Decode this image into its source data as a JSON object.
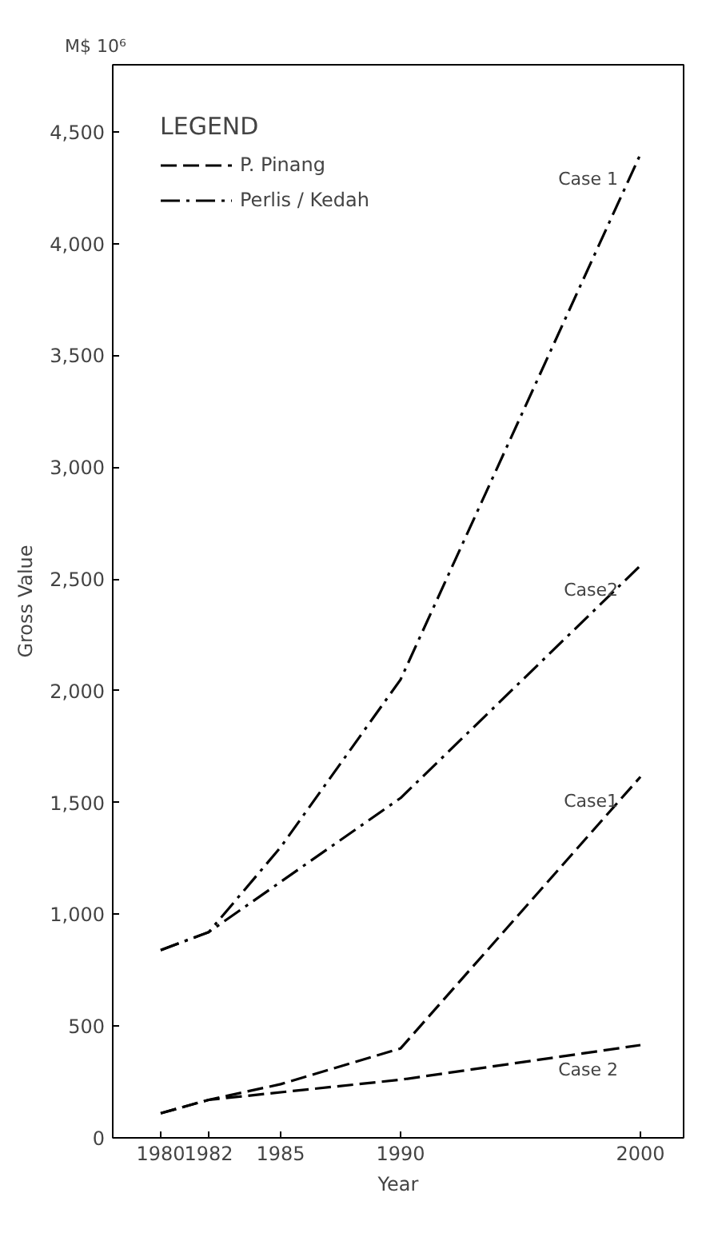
{
  "chart_data": {
    "type": "line",
    "xlabel": "Year",
    "ylabel": "Gross Value",
    "legend_title": "LEGEND",
    "legend": "top left",
    "grid": false,
    "xlim": [
      1978,
      2001.8
    ],
    "ylim": [
      0,
      4800
    ],
    "xticks": [
      1980,
      1982,
      1985,
      1990,
      2000
    ],
    "yticks": [
      0,
      500,
      {
        "value": 1000,
        "label": "1,000"
      },
      {
        "value": 1500,
        "label": "1,500"
      },
      {
        "value": 2000,
        "label": "2,000"
      },
      {
        "value": 2500,
        "label": "2,500"
      },
      {
        "value": 3000,
        "label": "3,000"
      },
      {
        "value": 3500,
        "label": "3,500"
      },
      {
        "value": 4000,
        "label": "4,000"
      },
      {
        "value": 4500,
        "label": "4,500"
      }
    ],
    "series": [
      {
        "name": "P. Pinang",
        "color": "#000000",
        "line_style": "dashed",
        "x": [
          1980,
          1982,
          1985,
          1990,
          2000
        ],
        "values": [
          110,
          170,
          240,
          400,
          1615
        ]
      },
      {
        "color": "#000000",
        "line_style": "dashed",
        "x": [
          1980,
          1982,
          1990,
          2000
        ],
        "values": [
          110,
          170,
          260,
          415
        ]
      },
      {
        "name": "Perlis / Kedah",
        "color": "#000000",
        "line_style": "dashdot",
        "x": [
          1980,
          1982,
          1985,
          1990,
          2000
        ],
        "values": [
          840,
          920,
          1300,
          2050,
          4400
        ]
      },
      {
        "color": "#000000",
        "line_style": "dashdot",
        "x": [
          1980,
          1982,
          1990,
          2000
        ],
        "values": [
          840,
          920,
          1520,
          2560
        ]
      }
    ],
    "annotations": [
      "M$ 10⁶",
      "Case1",
      "Case 2",
      "Case 1",
      "Case2"
    ]
  }
}
